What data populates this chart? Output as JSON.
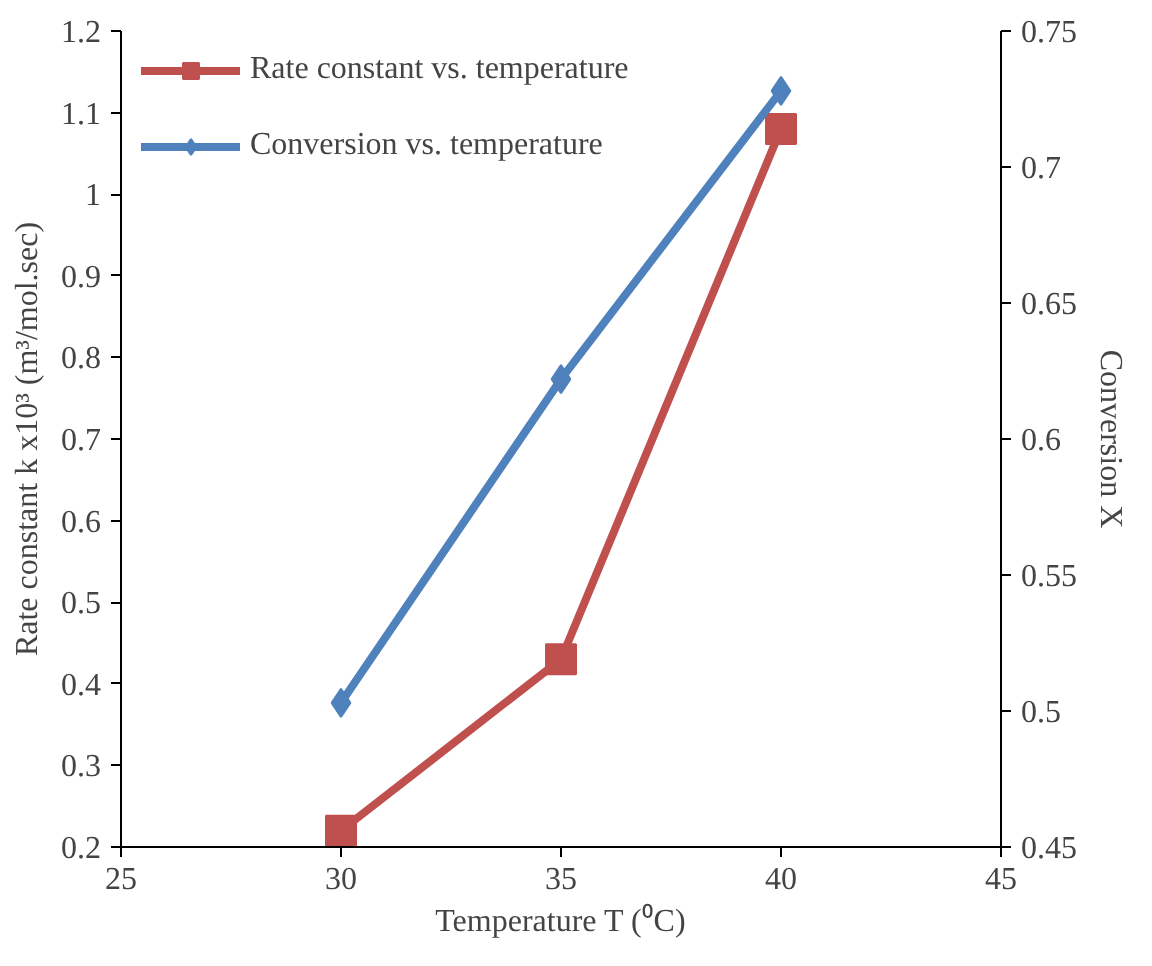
{
  "chart_data": {
    "type": "line",
    "xlabel": "Temperature T (⁰C)",
    "ylabel": "Rate constant k x10³ (m³/mol.sec)",
    "y2label": "Conversion X",
    "x": [
      30,
      35,
      40
    ],
    "series": [
      {
        "name": "Rate constant vs. temperature",
        "color": "#c0504d",
        "values": [
          0.22,
          0.43,
          1.08
        ],
        "marker": "square"
      },
      {
        "name": "Conversion vs. temperature",
        "color": "#4f81bd",
        "values": [
          0.503,
          0.622,
          0.728
        ],
        "marker": "diamond",
        "axis": "y2"
      }
    ],
    "xlim": [
      25,
      45
    ],
    "xticks": [
      25,
      30,
      35,
      40,
      45
    ],
    "ylim": [
      0.2,
      1.2
    ],
    "yticks": [
      0.2,
      0.3,
      0.4,
      0.5,
      0.6,
      0.7,
      0.8,
      0.9,
      1,
      1.1,
      1.2
    ],
    "y2lim": [
      0.45,
      0.75
    ],
    "y2ticks": [
      0.45,
      0.5,
      0.55,
      0.6,
      0.65,
      0.7,
      0.75
    ],
    "grid": false,
    "legend": "top left",
    "line_style": "solid"
  }
}
